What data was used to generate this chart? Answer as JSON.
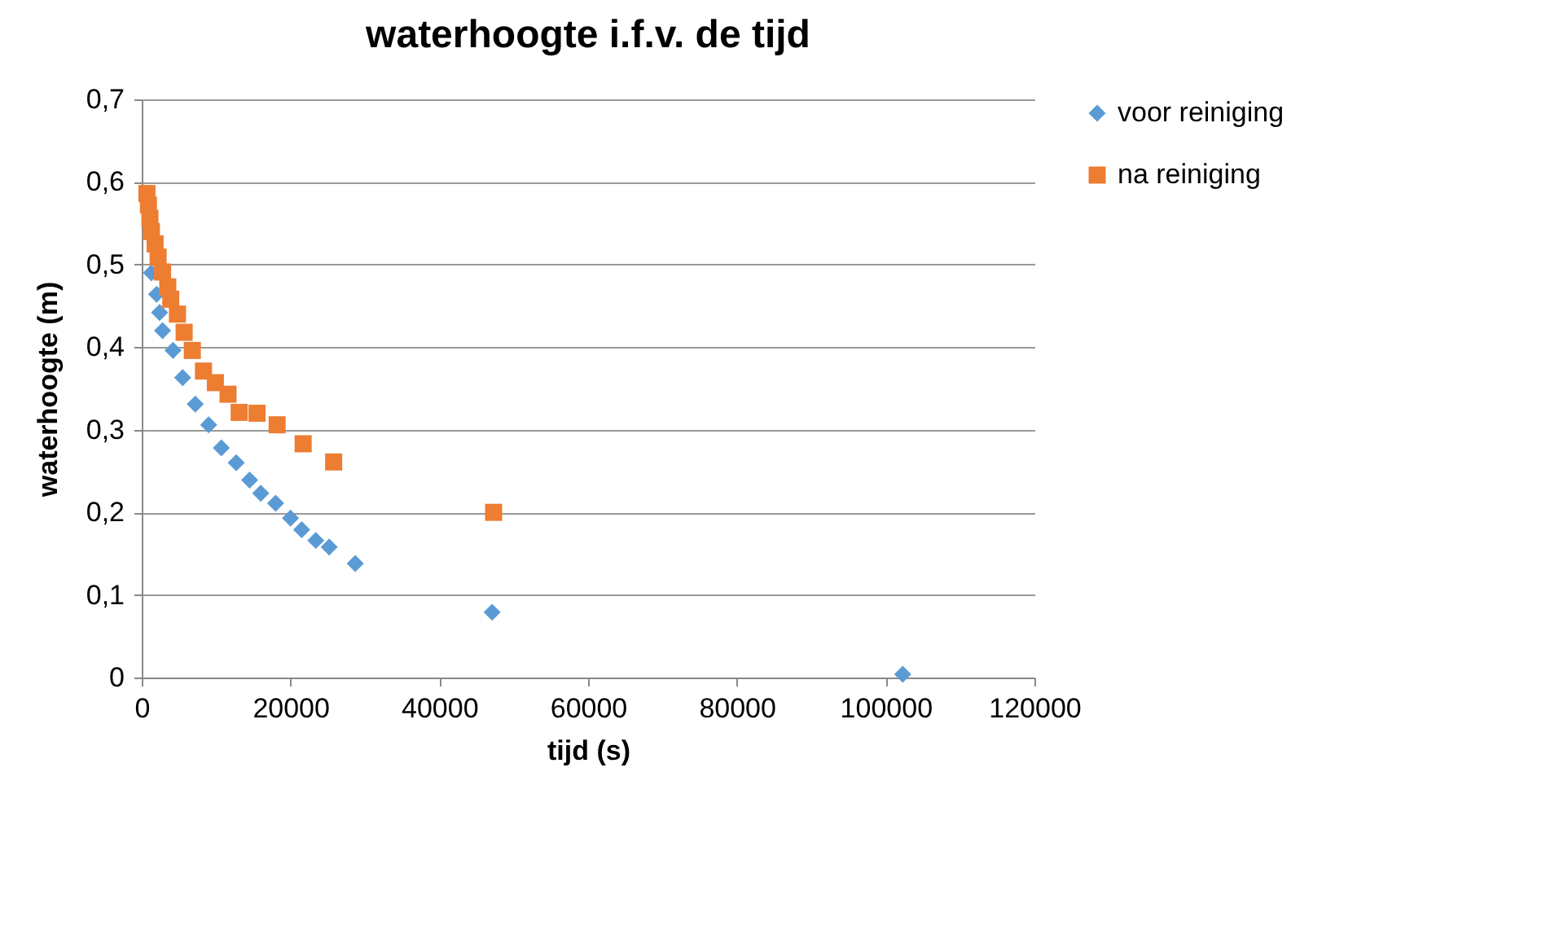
{
  "chart_data": {
    "type": "scatter",
    "title": "waterhoogte i.f.v. de tijd",
    "xlabel": "tijd (s)",
    "ylabel": "waterhoogte (m)",
    "xlim": [
      0,
      120000
    ],
    "xticks": [
      0,
      20000,
      40000,
      60000,
      80000,
      100000,
      120000
    ],
    "ylim": [
      0,
      0.7
    ],
    "yticks": [
      {
        "value": 0,
        "label": "0"
      },
      {
        "value": 0.1,
        "label": "0,1"
      },
      {
        "value": 0.2,
        "label": "0,2"
      },
      {
        "value": 0.3,
        "label": "0,3"
      },
      {
        "value": 0.4,
        "label": "0,4"
      },
      {
        "value": 0.5,
        "label": "0,5"
      },
      {
        "value": 0.6,
        "label": "0,6"
      },
      {
        "value": 0.7,
        "label": "0,7"
      }
    ],
    "grid": "y",
    "legend": "right",
    "series": [
      {
        "name": "voor reiniging",
        "color": "#5b9bd5",
        "marker": "diamond",
        "x": [
          1300,
          2000,
          2400,
          2800,
          4200,
          5500,
          7200,
          9000,
          10700,
          12700,
          14500,
          16000,
          18000,
          20000,
          21500,
          23400,
          25200,
          28700,
          47100,
          102300
        ],
        "values": [
          0.49,
          0.464,
          0.442,
          0.42,
          0.396,
          0.363,
          0.331,
          0.306,
          0.278,
          0.26,
          0.239,
          0.223,
          0.211,
          0.193,
          0.179,
          0.166,
          0.158,
          0.138,
          0.079,
          0.004
        ]
      },
      {
        "name": "na reiniging",
        "color": "#ed7d31",
        "marker": "square",
        "x": [
          700,
          900,
          1100,
          1300,
          1800,
          2200,
          2800,
          3500,
          3900,
          4800,
          5700,
          6800,
          8300,
          9900,
          11600,
          13100,
          15500,
          18200,
          21700,
          25800,
          47300
        ],
        "values": [
          0.586,
          0.572,
          0.556,
          0.54,
          0.525,
          0.509,
          0.491,
          0.473,
          0.458,
          0.44,
          0.418,
          0.396,
          0.371,
          0.357,
          0.343,
          0.321,
          0.32,
          0.306,
          0.283,
          0.261,
          0.2
        ]
      }
    ]
  }
}
